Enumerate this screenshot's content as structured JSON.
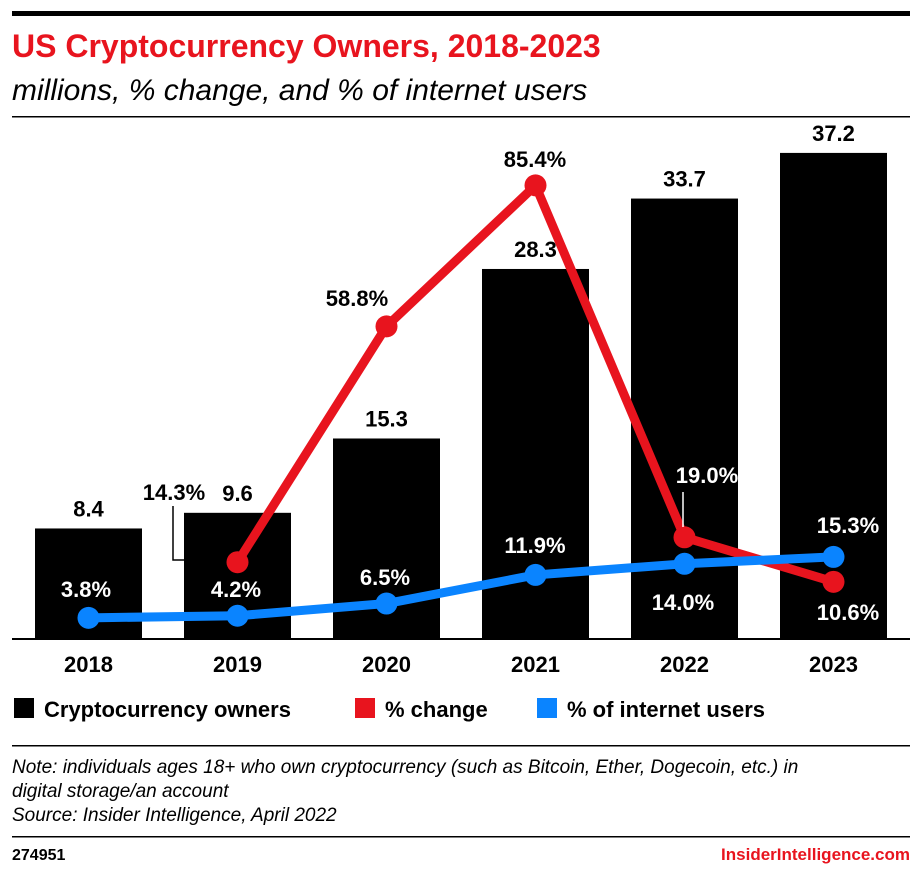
{
  "header": {
    "title": "US Cryptocurrency Owners, 2018-2023",
    "subtitle": "millions, % change, and % of internet users"
  },
  "chart_data": {
    "type": "bar",
    "categories": [
      "2018",
      "2019",
      "2020",
      "2021",
      "2022",
      "2023"
    ],
    "series": [
      {
        "name": "Cryptocurrency owners",
        "type": "bar",
        "color": "#000000",
        "values": [
          8.4,
          9.6,
          15.3,
          28.3,
          33.7,
          37.2
        ],
        "labels": [
          "8.4",
          "9.6",
          "15.3",
          "28.3",
          "33.7",
          "37.2"
        ]
      },
      {
        "name": "% change",
        "type": "line",
        "color": "#e8141e",
        "values": [
          null,
          14.3,
          58.8,
          85.4,
          19.0,
          10.6
        ],
        "labels": [
          "",
          "14.3%",
          "58.8%",
          "85.4%",
          "19.0%",
          "10.6%"
        ]
      },
      {
        "name": "% of internet users",
        "type": "line",
        "color": "#0a84ff",
        "values": [
          3.8,
          4.2,
          6.5,
          11.9,
          14.0,
          15.3
        ],
        "labels": [
          "3.8%",
          "4.2%",
          "6.5%",
          "11.9%",
          "14.0%",
          "15.3%"
        ]
      }
    ],
    "legend_position": "bottom",
    "grid": false
  },
  "footer": {
    "note": "Note: individuals ages 18+ who own cryptocurrency (such as Bitcoin, Ether, Dogecoin, etc.) in digital storage/an account",
    "note_line1": "Note: individuals ages 18+ who own cryptocurrency (such as Bitcoin, Ether, Dogecoin, etc.) in",
    "note_line2": "digital storage/an account",
    "source": "Source: Insider Intelligence, April 2022",
    "chart_id": "274951",
    "brand": "InsiderIntelligence.com"
  },
  "colors": {
    "accent": "#e8141e",
    "blue": "#0a84ff",
    "bar": "#000000"
  }
}
